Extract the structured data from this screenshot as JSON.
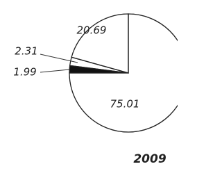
{
  "chart_data": {
    "type": "pie",
    "title": "2009",
    "values": [
      20.69,
      2.31,
      1.99,
      75.01
    ],
    "colors": [
      "#ffffff",
      "#ffffff",
      "#111111",
      "#ffffff"
    ]
  }
}
